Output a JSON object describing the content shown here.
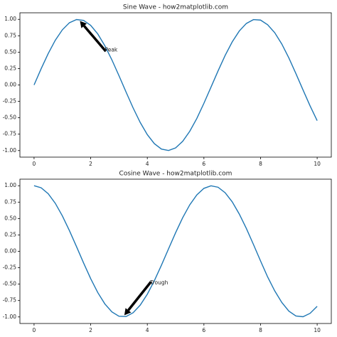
{
  "chart_data": [
    {
      "type": "line",
      "title": "Sine Wave - how2matplotlib.com",
      "color": "#1f77b4",
      "x": [
        0,
        0.25,
        0.5,
        0.75,
        1,
        1.25,
        1.5,
        1.75,
        2,
        2.25,
        2.5,
        2.75,
        3,
        3.25,
        3.5,
        3.75,
        4,
        4.25,
        4.5,
        4.75,
        5,
        5.25,
        5.5,
        5.75,
        6,
        6.25,
        6.5,
        6.75,
        7,
        7.25,
        7.5,
        7.75,
        8,
        8.25,
        8.5,
        8.75,
        9,
        9.25,
        9.5,
        9.75,
        10
      ],
      "values": [
        0,
        0.247,
        0.479,
        0.682,
        0.841,
        0.949,
        0.997,
        0.984,
        0.909,
        0.778,
        0.598,
        0.382,
        0.141,
        -0.108,
        -0.351,
        -0.572,
        -0.757,
        -0.895,
        -0.978,
        -0.999,
        -0.959,
        -0.859,
        -0.706,
        -0.51,
        -0.279,
        -0.033,
        0.215,
        0.45,
        0.657,
        0.823,
        0.938,
        0.996,
        0.989,
        0.918,
        0.798,
        0.625,
        0.412,
        0.173,
        -0.075,
        -0.319,
        -0.544
      ],
      "xlim": [
        -0.5,
        10.5
      ],
      "ylim": [
        -1.1,
        1.1
      ],
      "xticks": [
        0,
        2,
        4,
        6,
        8,
        10
      ],
      "yticks": [
        {
          "value": 1,
          "label": "1.00"
        },
        {
          "value": 0.75,
          "label": "0.75"
        },
        {
          "value": 0.5,
          "label": "0.50"
        },
        {
          "value": 0.25,
          "label": "0.25"
        },
        {
          "value": 0,
          "label": "0.00"
        },
        {
          "value": -0.25,
          "label": "-0.25"
        },
        {
          "value": -0.5,
          "label": "-0.50"
        },
        {
          "value": -0.75,
          "label": "-0.75"
        },
        {
          "value": -1,
          "label": "-1.00"
        }
      ],
      "annotations": [
        {
          "text": "Peak",
          "xy": [
            1.571,
            1
          ],
          "xytext": [
            2.5,
            0.53
          ]
        }
      ]
    },
    {
      "type": "line",
      "title": "Cosine Wave - how2matplotlib.com",
      "color": "#1f77b4",
      "x": [
        0,
        0.25,
        0.5,
        0.75,
        1,
        1.25,
        1.5,
        1.75,
        2,
        2.25,
        2.5,
        2.75,
        3,
        3.25,
        3.5,
        3.75,
        4,
        4.25,
        4.5,
        4.75,
        5,
        5.25,
        5.5,
        5.75,
        6,
        6.25,
        6.5,
        6.75,
        7,
        7.25,
        7.5,
        7.75,
        8,
        8.25,
        8.5,
        8.75,
        9,
        9.25,
        9.5,
        9.75,
        10
      ],
      "values": [
        1,
        0.969,
        0.878,
        0.732,
        0.54,
        0.315,
        0.071,
        -0.178,
        -0.416,
        -0.628,
        -0.801,
        -0.924,
        -0.99,
        -0.994,
        -0.936,
        -0.82,
        -0.654,
        -0.446,
        -0.211,
        0.038,
        0.284,
        0.513,
        0.709,
        0.861,
        0.96,
        0.999,
        0.977,
        0.893,
        0.754,
        0.568,
        0.347,
        0.104,
        -0.146,
        -0.39,
        -0.602,
        -0.779,
        -0.911,
        -0.985,
        -0.997,
        -0.945,
        -0.839
      ],
      "xlim": [
        -0.5,
        10.5
      ],
      "ylim": [
        -1.1,
        1.1
      ],
      "xticks": [
        0,
        2,
        4,
        6,
        8,
        10
      ],
      "yticks": [
        {
          "value": 1,
          "label": "1.00"
        },
        {
          "value": 0.75,
          "label": "0.75"
        },
        {
          "value": 0.5,
          "label": "0.50"
        },
        {
          "value": 0.25,
          "label": "0.25"
        },
        {
          "value": 0,
          "label": "0.00"
        },
        {
          "value": -0.25,
          "label": "-0.25"
        },
        {
          "value": -0.5,
          "label": "-0.50"
        },
        {
          "value": -0.75,
          "label": "-0.75"
        },
        {
          "value": -1,
          "label": "-1.00"
        }
      ],
      "annotations": [
        {
          "text": "Trough",
          "xy": [
            3.142,
            -1
          ],
          "xytext": [
            4.1,
            -0.48
          ]
        }
      ]
    }
  ]
}
